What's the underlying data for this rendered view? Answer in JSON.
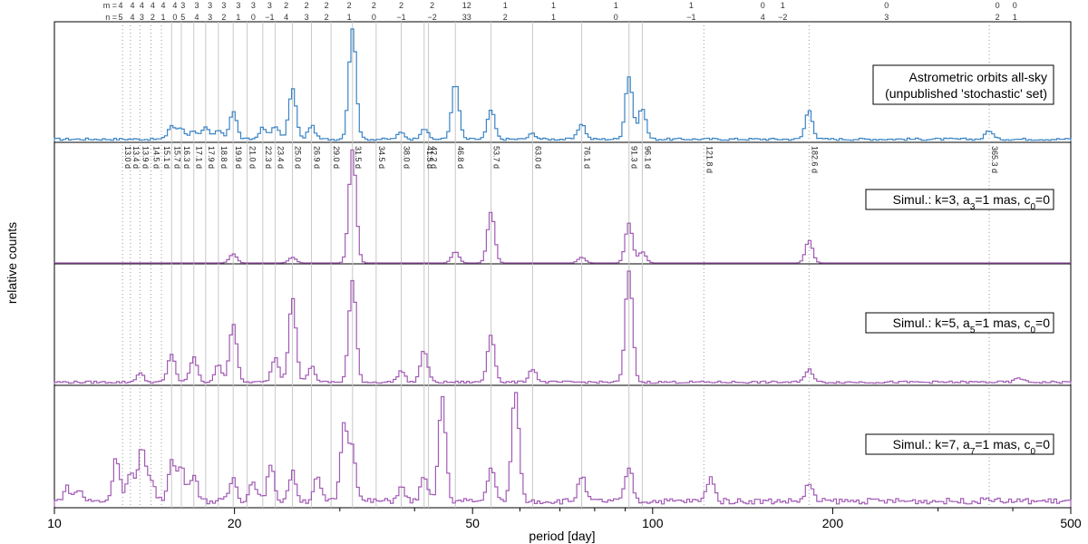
{
  "chart_data": {
    "type": "line",
    "xlabel": "period [day]",
    "ylabel": "relative counts",
    "xscale": "log",
    "xlim": [
      10,
      500
    ],
    "x_ticks": [
      "10",
      "20",
      "50",
      "100",
      "200",
      "500"
    ],
    "x_tick_values": [
      10,
      20,
      50,
      100,
      200,
      500
    ],
    "mn_row_labels": {
      "m": "m =",
      "n": "n ="
    },
    "mn_labels": [
      {
        "m": "4",
        "n": "5",
        "period": 12.9
      },
      {
        "m": "4",
        "n": "4",
        "period": 13.5
      },
      {
        "m": "4",
        "n": "3",
        "period": 14.0
      },
      {
        "m": "4",
        "n": "2",
        "period": 14.6
      },
      {
        "m": "4",
        "n": "1",
        "period": 15.2
      },
      {
        "m": "4",
        "n": "0",
        "period": 15.9
      },
      {
        "m": "3",
        "n": "5",
        "period": 16.4
      },
      {
        "m": "3",
        "n": "4",
        "period": 17.3
      },
      {
        "m": "3",
        "n": "3",
        "period": 18.2
      },
      {
        "m": "3",
        "n": "2",
        "period": 19.2
      },
      {
        "m": "3",
        "n": "1",
        "period": 20.3
      },
      {
        "m": "3",
        "n": "0",
        "period": 21.5
      },
      {
        "m": "3",
        "n": "−1",
        "period": 22.9
      },
      {
        "m": "2",
        "n": "4",
        "period": 24.4
      },
      {
        "m": "2",
        "n": "3",
        "period": 26.4
      },
      {
        "m": "2",
        "n": "2",
        "period": 28.5
      },
      {
        "m": "2",
        "n": "1",
        "period": 31.1
      },
      {
        "m": "2",
        "n": "0",
        "period": 34.2
      },
      {
        "m": "2",
        "n": "−1",
        "period": 38.0
      },
      {
        "m": "2",
        "n": "−2",
        "period": 42.8
      },
      {
        "m": "12",
        "n": "33",
        "period": 48.9
      },
      {
        "m": "1",
        "n": "2",
        "period": 56.7
      },
      {
        "m": "1",
        "n": "1",
        "period": 68.3
      },
      {
        "m": "1",
        "n": "0",
        "period": 86.8
      },
      {
        "m": "1",
        "n": "−1",
        "period": 116.0
      },
      {
        "m": "0",
        "n": "4",
        "period": 152.8
      },
      {
        "m": "1",
        "n": "−2",
        "period": 165.0
      },
      {
        "m": "0",
        "n": "3",
        "period": 246.0
      },
      {
        "m": "0",
        "n": "2",
        "period": 377.0
      },
      {
        "m": "0",
        "n": "1",
        "period": 403.0
      }
    ],
    "period_labels": [
      "13.0 d",
      "13.4 d",
      "13.9 d",
      "14.5 d",
      "15.1 d",
      "15.7 d",
      "16.3 d",
      "17.1 d",
      "17.9 d",
      "18.8 d",
      "19.9 d",
      "21.0 d",
      "22.3 d",
      "23.4 d",
      "25.0 d",
      "26.9 d",
      "29.0 d",
      "31.5 d",
      "34.5 d",
      "38.0 d",
      "41.5 d",
      "42.2 d",
      "46.8 d",
      "53.7 d",
      "63.0 d",
      "76.1 d",
      "91.3 d",
      "96.1 d",
      "121.8 d",
      "182.6 d",
      "365.3 d"
    ],
    "period_values": [
      13.0,
      13.4,
      13.9,
      14.5,
      15.1,
      15.7,
      16.3,
      17.1,
      17.9,
      18.8,
      19.9,
      21.0,
      22.3,
      23.4,
      25.0,
      26.9,
      29.0,
      31.5,
      34.5,
      38.0,
      41.5,
      42.2,
      46.8,
      53.7,
      63.0,
      76.1,
      91.3,
      96.1,
      121.8,
      182.6,
      365.3
    ],
    "solid_lines": [
      15.7,
      16.3,
      17.1,
      17.9,
      18.8,
      19.9,
      21.0,
      22.3,
      23.4,
      25.0,
      26.9,
      29.0,
      31.5,
      34.5,
      38.0,
      41.5,
      42.2,
      46.8,
      53.7,
      63.0,
      76.1,
      91.3,
      96.1
    ],
    "dotted_lines": [
      13.0,
      13.4,
      13.9,
      14.5,
      15.1,
      121.8,
      182.6,
      365.3
    ],
    "series": [
      {
        "name": "Astrometric orbits all-sky\n(unpublished 'stochastic' set)",
        "legend_lines": [
          "Astrometric orbits all-sky",
          "(unpublished 'stochastic' set)"
        ],
        "color": "#3a84c5",
        "base": 0.02,
        "peaks": [
          [
            15.7,
            0.12
          ],
          [
            16.3,
            0.1
          ],
          [
            17.1,
            0.08
          ],
          [
            17.9,
            0.1
          ],
          [
            18.8,
            0.08
          ],
          [
            19.9,
            0.25
          ],
          [
            22.3,
            0.1
          ],
          [
            23.4,
            0.12
          ],
          [
            25.0,
            0.45
          ],
          [
            26.9,
            0.12
          ],
          [
            31.5,
            1.0
          ],
          [
            38.0,
            0.06
          ],
          [
            41.5,
            0.1
          ],
          [
            46.8,
            0.5
          ],
          [
            53.7,
            0.26
          ],
          [
            63.0,
            0.05
          ],
          [
            76.1,
            0.14
          ],
          [
            91.3,
            0.56
          ],
          [
            96.1,
            0.28
          ],
          [
            182.6,
            0.26
          ],
          [
            365.3,
            0.08
          ]
        ],
        "legend_key": "all-sky"
      },
      {
        "name": "Simul.: k=3, a3=1 mas, c0=0",
        "legend_parts": {
          "k": "3",
          "sub": "3",
          "c_sub": "0"
        },
        "color": "#a25bb5",
        "base": 0.0,
        "peaks": [
          [
            19.9,
            0.08
          ],
          [
            25.0,
            0.05
          ],
          [
            31.5,
            1.0
          ],
          [
            46.8,
            0.1
          ],
          [
            53.7,
            0.45
          ],
          [
            76.1,
            0.05
          ],
          [
            91.3,
            0.35
          ],
          [
            96.1,
            0.1
          ],
          [
            182.6,
            0.2
          ]
        ],
        "legend_key": "k3"
      },
      {
        "name": "Simul.: k=5, a5=1 mas, c0=0",
        "legend_parts": {
          "k": "5",
          "sub": "5",
          "c_sub": "0"
        },
        "color": "#a25bb5",
        "base": 0.02,
        "peaks": [
          [
            13.9,
            0.08
          ],
          [
            15.7,
            0.25
          ],
          [
            17.1,
            0.22
          ],
          [
            18.8,
            0.15
          ],
          [
            19.9,
            0.52
          ],
          [
            23.4,
            0.22
          ],
          [
            25.0,
            0.75
          ],
          [
            26.9,
            0.14
          ],
          [
            31.5,
            0.9
          ],
          [
            38.0,
            0.1
          ],
          [
            41.5,
            0.28
          ],
          [
            53.7,
            0.42
          ],
          [
            63.0,
            0.12
          ],
          [
            91.3,
            1.0
          ],
          [
            182.6,
            0.12
          ],
          [
            410.0,
            0.04
          ]
        ],
        "legend_key": "k5"
      },
      {
        "name": "Simul.: k=7, a7=1 mas, c0=0",
        "legend_parts": {
          "k": "7",
          "sub": "7",
          "c_sub": "0"
        },
        "color": "#a25bb5",
        "base": 0.05,
        "peaks": [
          [
            10.5,
            0.12
          ],
          [
            11.0,
            0.1
          ],
          [
            12.7,
            0.38
          ],
          [
            13.4,
            0.25
          ],
          [
            14.0,
            0.45
          ],
          [
            14.5,
            0.2
          ],
          [
            15.7,
            0.35
          ],
          [
            16.3,
            0.3
          ],
          [
            17.1,
            0.25
          ],
          [
            19.9,
            0.2
          ],
          [
            21.5,
            0.18
          ],
          [
            23.0,
            0.3
          ],
          [
            25.0,
            0.25
          ],
          [
            27.5,
            0.2
          ],
          [
            30.5,
            0.65
          ],
          [
            31.5,
            0.45
          ],
          [
            38.0,
            0.12
          ],
          [
            41.5,
            0.2
          ],
          [
            44.5,
            0.9
          ],
          [
            53.7,
            0.3
          ],
          [
            59.0,
            1.0
          ],
          [
            76.1,
            0.22
          ],
          [
            91.3,
            0.3
          ],
          [
            125.0,
            0.22
          ],
          [
            182.6,
            0.15
          ],
          [
            365.3,
            0.03
          ]
        ],
        "legend_key": "k7"
      }
    ]
  }
}
